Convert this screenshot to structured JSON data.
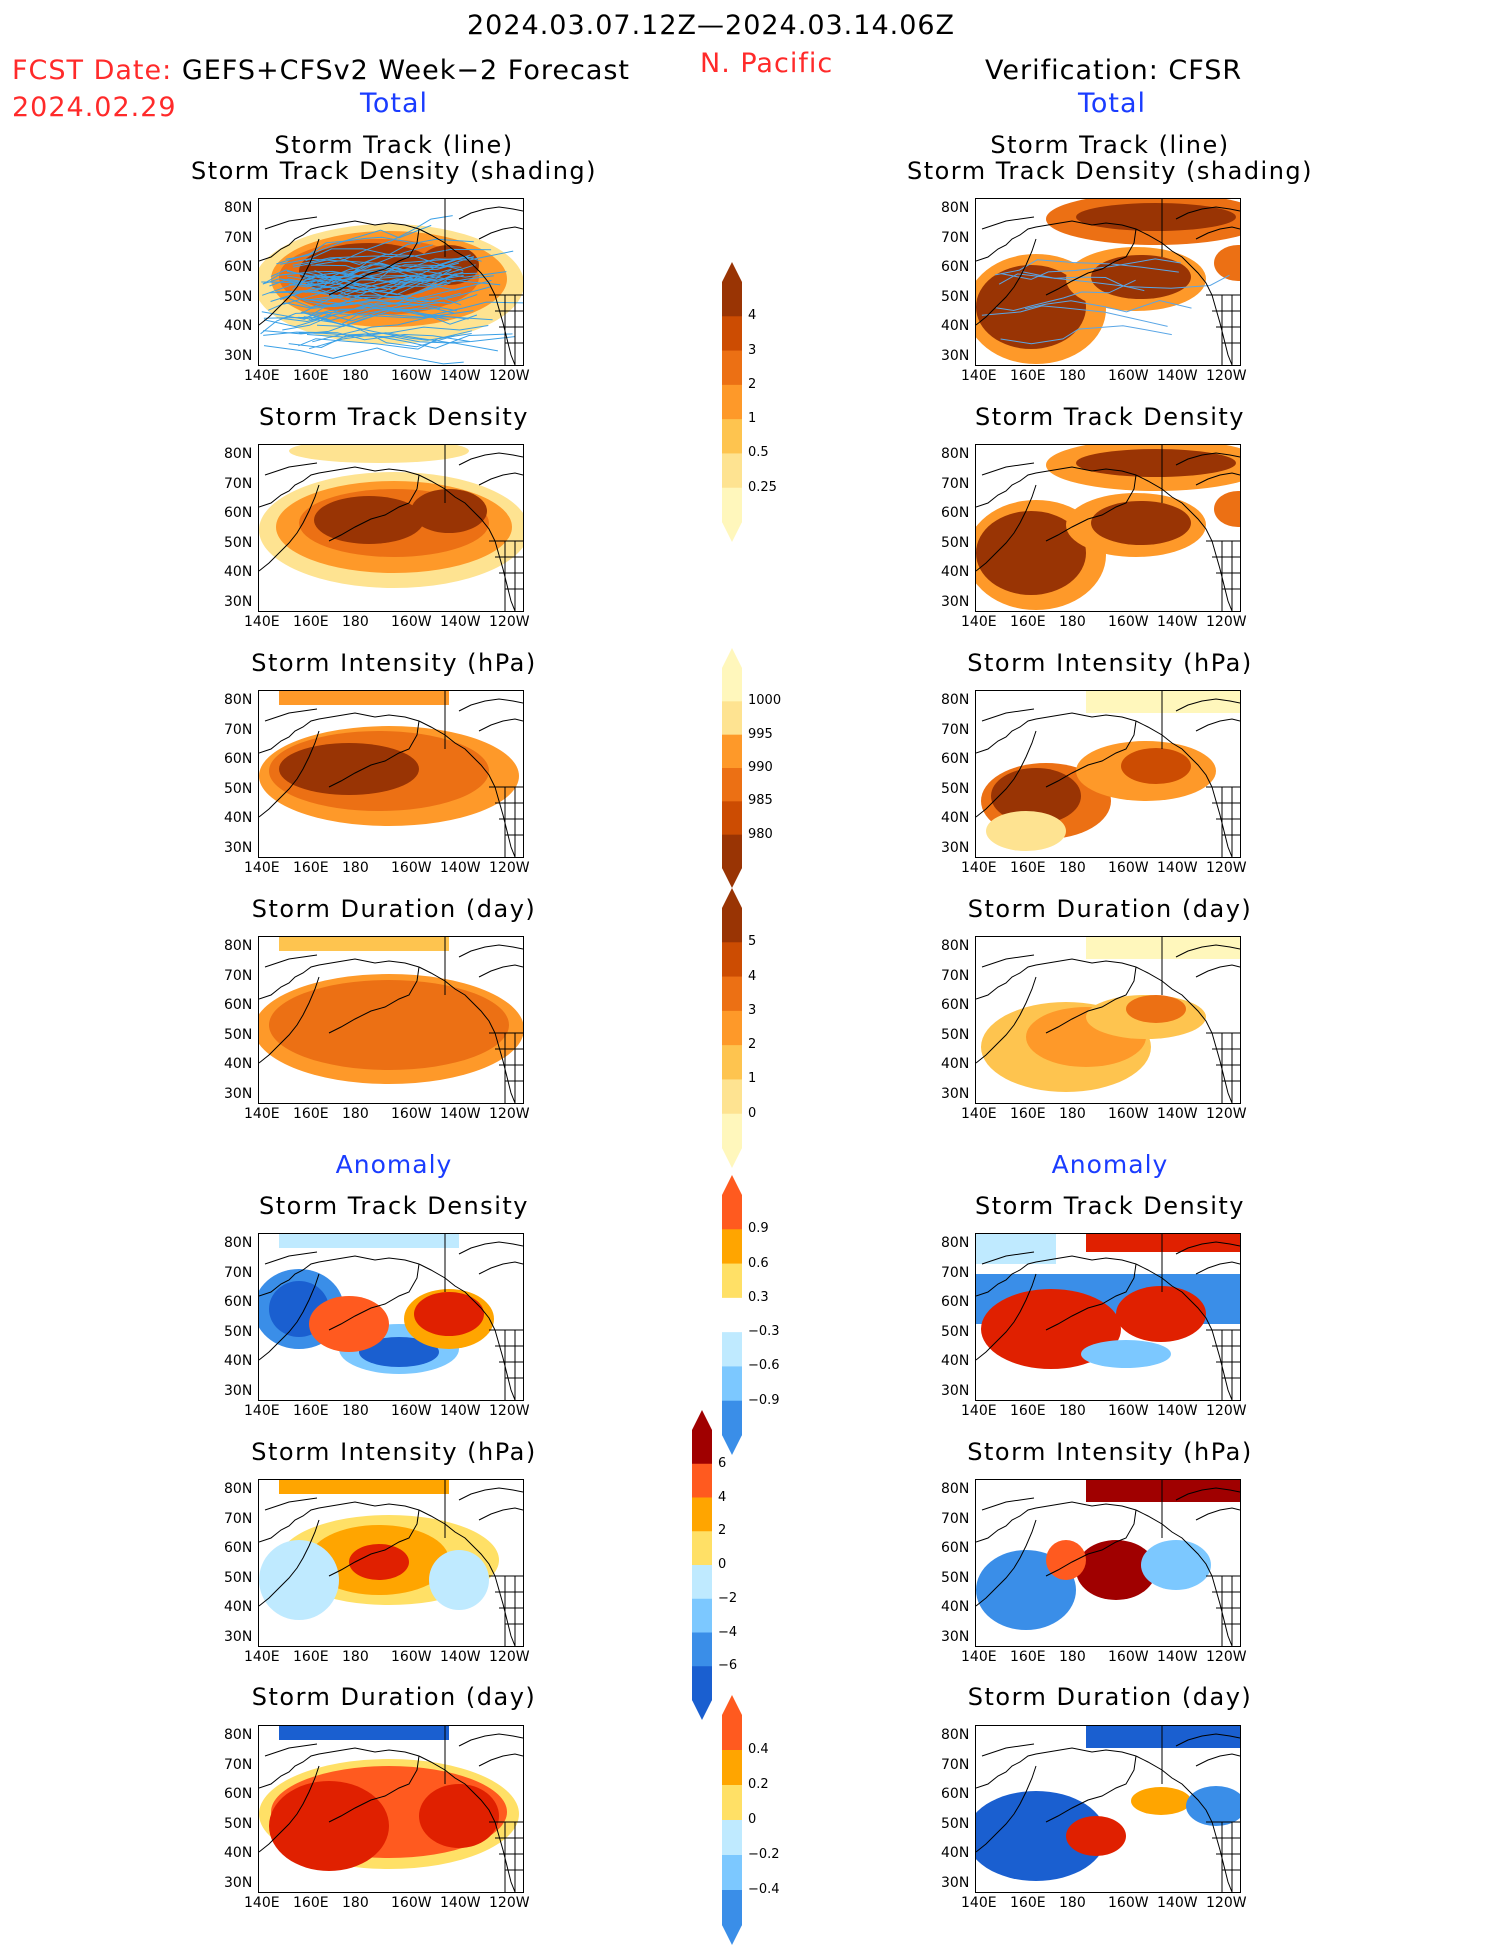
{
  "header": {
    "period": "2024.03.07.12Z—2024.03.14.06Z",
    "region": "N. Pacific",
    "fcst_label": "FCST Date:",
    "fcst_model": "GEFS+CFSv2 Week−2 Forecast",
    "fcst_date": "2024.02.29",
    "verif": "Verification: CFSR",
    "left_section": "Total",
    "right_section": "Total",
    "left_anom": "Anomaly",
    "right_anom": "Anomaly"
  },
  "titles": {
    "track_line": "Storm Track (line)",
    "track_shading": "Storm Track Density (shading)",
    "density": "Storm Track Density",
    "intensity": "Storm Intensity (hPa)",
    "duration": "Storm Duration (day)"
  },
  "axes": {
    "lat_ticks": [
      "80N",
      "70N",
      "60N",
      "50N",
      "40N",
      "30N"
    ],
    "lon_ticks": [
      "140E",
      "160E",
      "180",
      "160W",
      "140W",
      "120W"
    ]
  },
  "colorbars": {
    "density": [
      "4",
      "3",
      "2",
      "1",
      "0.5",
      "0.25"
    ],
    "intensity": [
      "1000",
      "995",
      "990",
      "985",
      "980"
    ],
    "duration": [
      "5",
      "4",
      "3",
      "2",
      "1",
      "0"
    ],
    "dens_anom": [
      "0.9",
      "0.6",
      "0.3",
      "−0.3",
      "−0.6",
      "−0.9"
    ],
    "int_anom": [
      "6",
      "4",
      "2",
      "0",
      "−2",
      "−4",
      "−6"
    ],
    "dur_anom": [
      "0.4",
      "0.2",
      "0",
      "−0.2",
      "−0.4"
    ]
  },
  "colors": {
    "reds": [
      "#fff7bc",
      "#fee391",
      "#fec44f",
      "#fe9929",
      "#ec7014",
      "#cc4c02",
      "#993404"
    ],
    "anom_pos": [
      "#ffe066",
      "#ffa500",
      "#ff5a1f",
      "#e02000",
      "#a00000"
    ],
    "anom_neg": [
      "#bfeaff",
      "#7cc8ff",
      "#3a8ee8",
      "#1a5fd0"
    ]
  }
}
